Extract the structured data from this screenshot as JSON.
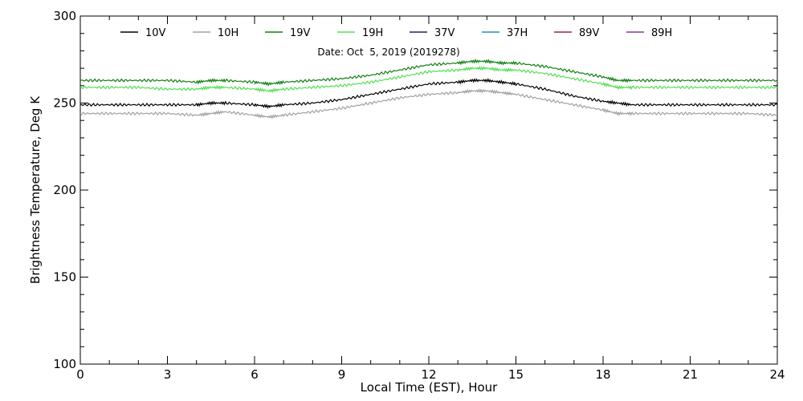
{
  "chart_data": {
    "type": "line",
    "xlabel": "Local Time (EST), Hour",
    "ylabel": "Brightness Temperature, Deg K",
    "annotation": "Date: Oct  5, 2019 (2019278)",
    "xlim": [
      0,
      24
    ],
    "ylim": [
      100,
      300
    ],
    "xticks": [
      0,
      3,
      6,
      9,
      12,
      15,
      18,
      21,
      24
    ],
    "yticks": [
      100,
      150,
      200,
      250,
      300
    ],
    "grid": false,
    "legend_position": "top",
    "legend": [
      {
        "name": "10V",
        "color": "#000000"
      },
      {
        "name": "10H",
        "color": "#a0a0a0"
      },
      {
        "name": "19V",
        "color": "#108010"
      },
      {
        "name": "19H",
        "color": "#50e050"
      },
      {
        "name": "37V",
        "color": "#202070"
      },
      {
        "name": "37H",
        "color": "#2090c0"
      },
      {
        "name": "89V",
        "color": "#a02040"
      },
      {
        "name": "89H",
        "color": "#9030a0"
      }
    ],
    "x": [
      0,
      1,
      2,
      3,
      4,
      4.5,
      5,
      6,
      6.5,
      7,
      8,
      9,
      10,
      11,
      12,
      13,
      13.5,
      14,
      14.5,
      15,
      16,
      17,
      18,
      18.5,
      19,
      20,
      21,
      22,
      23,
      24
    ],
    "series": [
      {
        "name": "19V",
        "color": "#108010",
        "values": [
          263,
          263,
          263,
          263,
          262,
          263,
          263,
          262,
          261,
          262,
          263,
          264,
          266,
          269,
          272,
          273,
          274,
          274,
          273,
          273,
          271,
          268,
          265,
          263,
          263,
          263,
          263,
          263,
          263,
          263
        ]
      },
      {
        "name": "19H",
        "color": "#50e050",
        "values": [
          259,
          259,
          259,
          258,
          258,
          259,
          259,
          258,
          257,
          258,
          259,
          260,
          262,
          265,
          268,
          269,
          270,
          270,
          269,
          269,
          267,
          264,
          261,
          259,
          259,
          259,
          259,
          259,
          259,
          259
        ]
      },
      {
        "name": "10V",
        "color": "#000000",
        "values": [
          249,
          249,
          249,
          249,
          249,
          250,
          250,
          249,
          248,
          249,
          250,
          252,
          255,
          258,
          261,
          262,
          263,
          263,
          262,
          261,
          258,
          254,
          251,
          250,
          249,
          249,
          249,
          249,
          249,
          249
        ]
      },
      {
        "name": "10H",
        "color": "#a0a0a0",
        "values": [
          244,
          244,
          244,
          244,
          243,
          244,
          245,
          243,
          242,
          243,
          245,
          247,
          250,
          253,
          255,
          256,
          257,
          257,
          256,
          255,
          252,
          249,
          246,
          244,
          244,
          244,
          244,
          244,
          244,
          243
        ]
      }
    ]
  }
}
